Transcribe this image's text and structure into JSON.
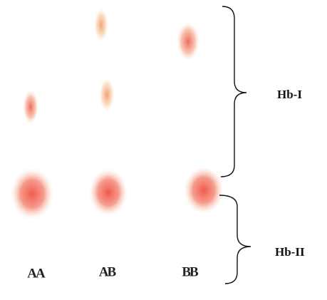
{
  "bands": {
    "upper": "Hb-I",
    "lower": "Hb-II"
  },
  "lanes": [
    "AA",
    "AB",
    "BB"
  ]
}
